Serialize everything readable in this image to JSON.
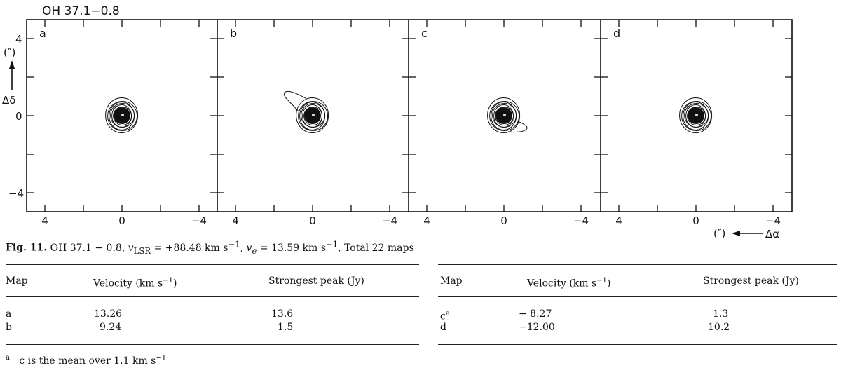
{
  "figure": {
    "title": "OH 37.1−0.8",
    "panels": [
      {
        "label": "a",
        "extension": null
      },
      {
        "label": "b",
        "extension": "upper-left"
      },
      {
        "label": "c",
        "extension": "lower-right"
      },
      {
        "label": "d",
        "extension": null
      }
    ],
    "y_ticks": [
      "4",
      "0",
      "−4"
    ],
    "x_ticks": [
      "4",
      "0",
      "−4"
    ],
    "y_axis_unit": "(″)",
    "y_axis_symbol": "Δδ",
    "x_axis_unit": "(″)",
    "x_axis_symbol": "Δα"
  },
  "caption": {
    "label": "Fig. 11.",
    "text_html": "OH 37.1 − 0.8, <i>v</i><sub>LSR</sub> = +88.48 km s<sup>−1</sup>, <i>v<sub>e</sub></i> = 13.59 km s<sup>−1</sup>, Total 22 maps"
  },
  "table_left": {
    "headers": {
      "map": "Map",
      "velocity_html": "Velocity (km s<sup>−1</sup>)",
      "peak": "Strongest peak (Jy)"
    },
    "rows": [
      {
        "map": "a",
        "velocity": "13.26",
        "peak": "13.6"
      },
      {
        "map": "b",
        "velocity": "9.24",
        "peak": "1.5"
      }
    ]
  },
  "table_right": {
    "headers": {
      "map": "Map",
      "velocity_html": "Velocity (km s<sup>−1</sup>)",
      "peak": "Strongest peak (Jy)"
    },
    "rows": [
      {
        "map": "c",
        "map_sup": "a",
        "velocity": "− 8.27",
        "peak": "1.3"
      },
      {
        "map": "d",
        "velocity": "−12.00",
        "peak": "10.2"
      }
    ]
  },
  "footnote": {
    "marker": "a",
    "text_html": "c is the mean over 1.1 km s<sup>−1</sup>"
  }
}
